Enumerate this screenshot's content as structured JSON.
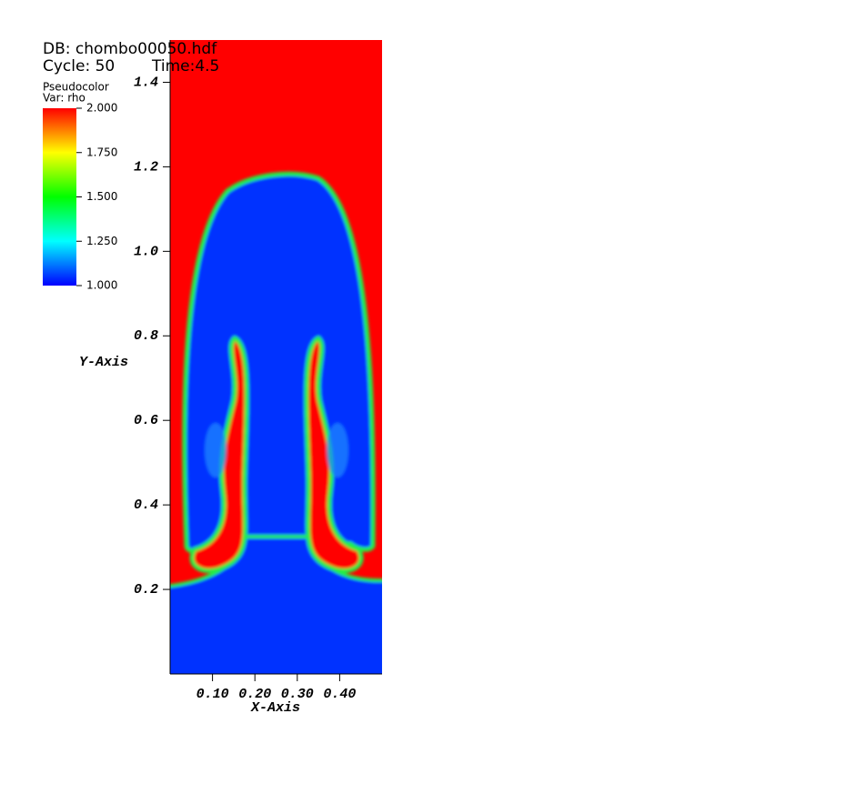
{
  "chart_data": {
    "type": "heatmap",
    "header": {
      "database": "DB: chombo00050.hdf",
      "cycle": "Cycle: 50",
      "time": "Time:4.5"
    },
    "legend": {
      "plot": "Pseudocolor",
      "variable": "Var: rho",
      "clim": [
        1,
        2
      ],
      "ticks": [
        {
          "value": 1,
          "label": "1.000"
        },
        {
          "value": 1.25,
          "label": "1.250"
        },
        {
          "value": 1.5,
          "label": "1.500"
        },
        {
          "value": 1.75,
          "label": "1.750"
        },
        {
          "value": 2,
          "label": "2.000"
        }
      ]
    },
    "x_label": "X-Axis",
    "y_label": "Y-Axis",
    "xlim": [
      0,
      0.5
    ],
    "ylim": [
      0,
      1.5
    ],
    "xticks": [
      {
        "value": 0.1,
        "label": "0.10"
      },
      {
        "value": 0.2,
        "label": "0.20"
      },
      {
        "value": 0.3,
        "label": "0.30"
      },
      {
        "value": 0.4,
        "label": "0.40"
      }
    ],
    "yticks": [
      0.2,
      0.4,
      0.6,
      0.8,
      {
        "value": 1.0,
        "label": "1.0"
      },
      1.2,
      1.4
    ]
  }
}
